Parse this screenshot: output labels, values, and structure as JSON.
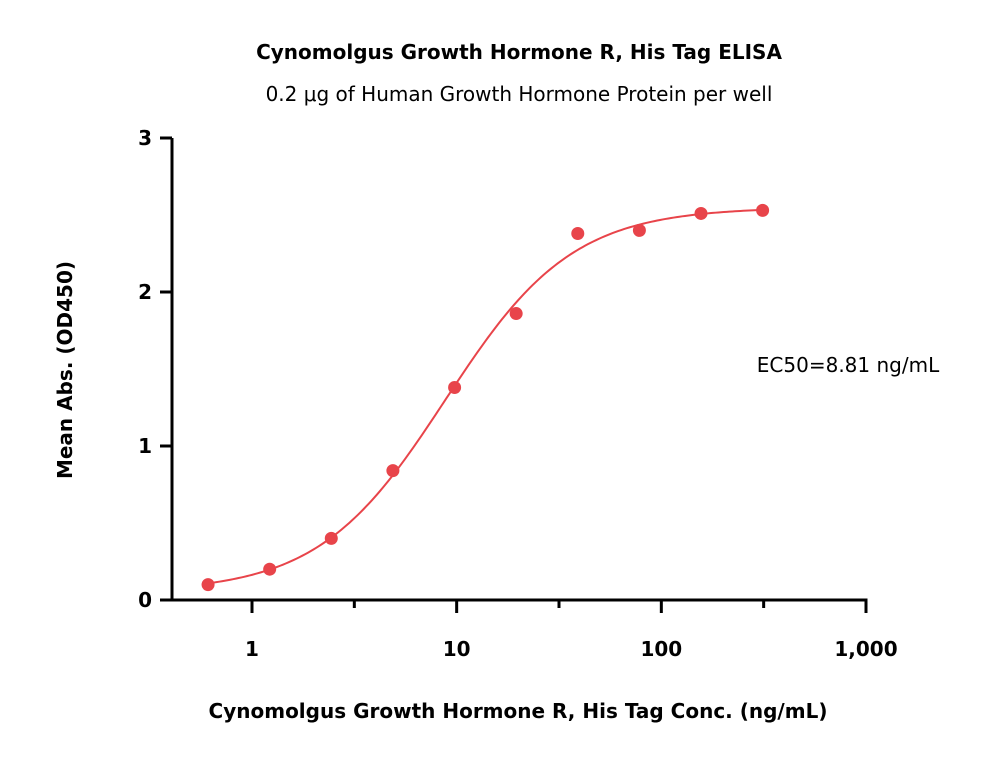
{
  "chart_data": {
    "type": "scatter",
    "title": "Cynomolgus Growth Hormone R, His Tag ELISA",
    "subtitle": "0.2 μg of Human Growth Hormone Protein per well",
    "xlabel": "Cynomolgus Growth Hormone R, His Tag Conc. (ng/mL)",
    "ylabel": "Mean Abs. (OD450)",
    "x_scale": "log",
    "xlim": [
      0.4,
      1000
    ],
    "ylim": [
      0,
      3
    ],
    "x_ticks": [
      1,
      10,
      100,
      1000
    ],
    "x_tick_labels": [
      "1",
      "10",
      "100",
      "1,000"
    ],
    "y_ticks": [
      0,
      1,
      2,
      3
    ],
    "y_tick_labels": [
      "0",
      "1",
      "2",
      "3"
    ],
    "grid": false,
    "series": [
      {
        "color": "#e8444a",
        "x": [
          0.61,
          1.22,
          2.44,
          4.88,
          9.77,
          19.53,
          39.06,
          78.13,
          156.25,
          312.5
        ],
        "y": [
          0.1,
          0.2,
          0.4,
          0.84,
          1.38,
          1.86,
          2.38,
          2.4,
          2.51,
          2.53
        ],
        "fit": {
          "model": "4PL",
          "bottom": 0.05,
          "top": 2.55,
          "ec50": 8.81,
          "hill": 1.4
        }
      }
    ],
    "annotations": [
      {
        "text": "EC50=8.81 ng/mL"
      }
    ]
  }
}
